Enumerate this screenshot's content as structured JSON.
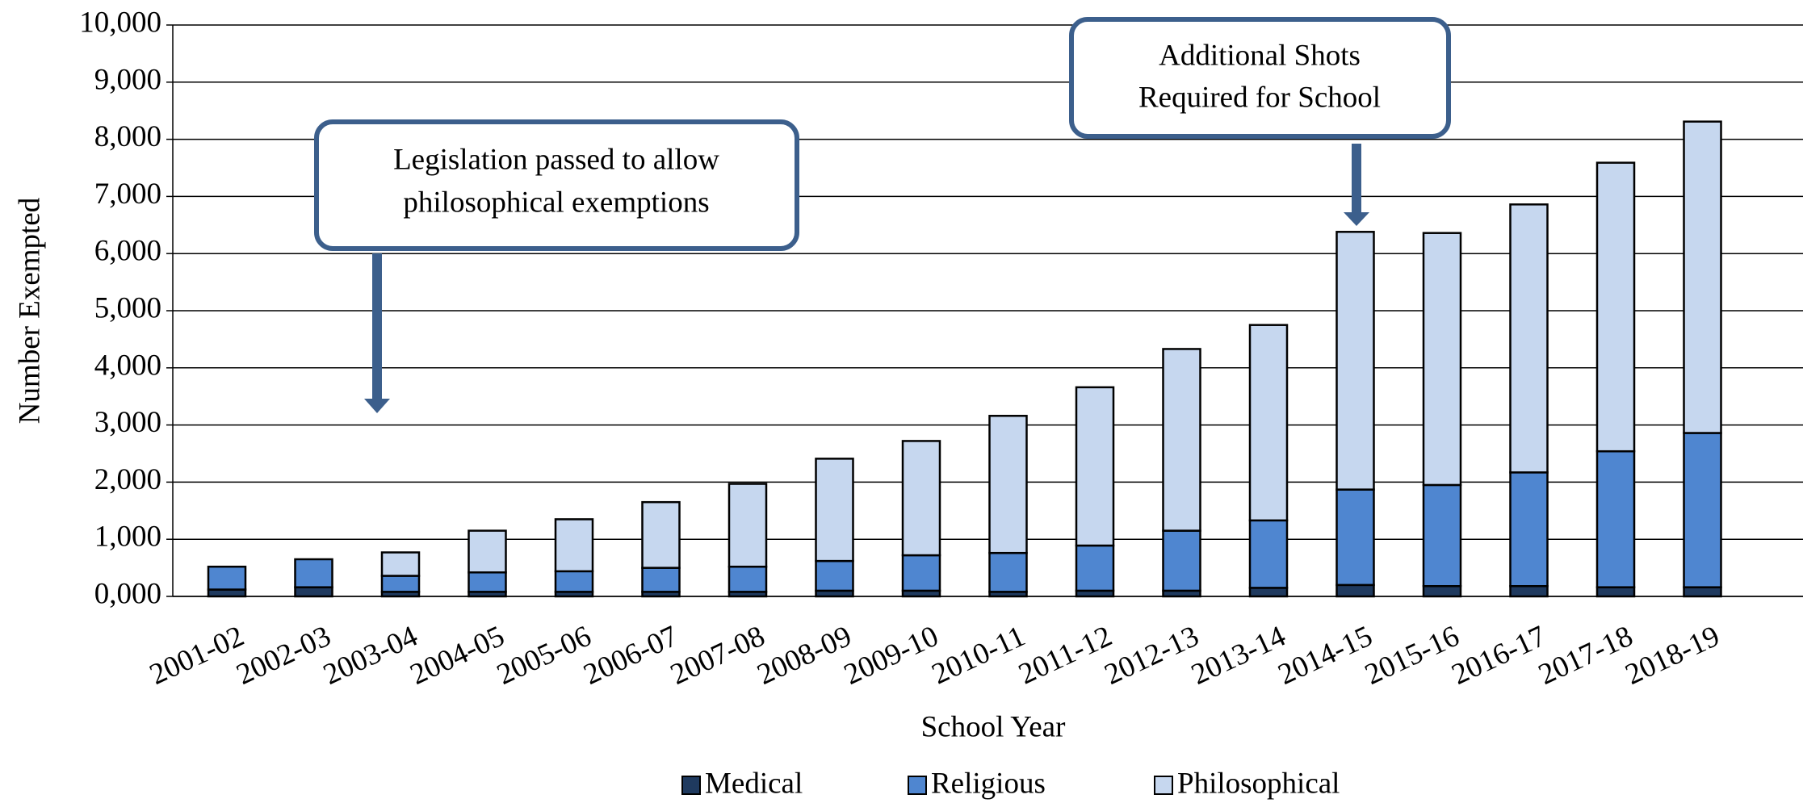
{
  "chart_data": {
    "type": "stacked_bar",
    "y_label": "Number Exempted",
    "x_label": "School Year",
    "categories": [
      "2001-02",
      "2002-03",
      "2003-04",
      "2004-05",
      "2005-06",
      "2006-07",
      "2007-08",
      "2008-09",
      "2009-10",
      "2010-11",
      "2011-12",
      "2012-13",
      "2013-14",
      "2014-15",
      "2015-16",
      "2016-17",
      "2017-18",
      "2018-19"
    ],
    "series": [
      {
        "name": "Medical",
        "color": "#1f3a5f",
        "values": [
          120,
          160,
          80,
          80,
          80,
          80,
          80,
          100,
          100,
          80,
          100,
          100,
          150,
          200,
          180,
          180,
          160,
          160
        ]
      },
      {
        "name": "Religious",
        "color": "#4f86d0",
        "values": [
          400,
          490,
          280,
          340,
          360,
          420,
          440,
          520,
          620,
          680,
          790,
          1050,
          1180,
          1670,
          1770,
          1990,
          2380,
          2700
        ]
      },
      {
        "name": "Philosophical",
        "color": "#c6d7ef",
        "values": [
          0,
          0,
          410,
          730,
          910,
          1150,
          1450,
          1790,
          2000,
          2400,
          2770,
          3180,
          3420,
          4510,
          4410,
          4690,
          5050,
          5450
        ]
      }
    ],
    "ylim": [
      0,
      10000
    ],
    "yticks": [
      {
        "value": 0,
        "label": "0,000"
      },
      {
        "value": 1000,
        "label": "1,000"
      },
      {
        "value": 2000,
        "label": "2,000"
      },
      {
        "value": 3000,
        "label": "3,000"
      },
      {
        "value": 4000,
        "label": "4,000"
      },
      {
        "value": 5000,
        "label": "5,000"
      },
      {
        "value": 6000,
        "label": "6,000"
      },
      {
        "value": 7000,
        "label": "7,000"
      },
      {
        "value": 8000,
        "label": "8,000"
      },
      {
        "value": 9000,
        "label": "9,000"
      },
      {
        "value": 10000,
        "label": "10,000"
      }
    ],
    "grid": true,
    "annotations": [
      {
        "text": [
          "Legislation  passed to allow",
          "philosophical exemptions"
        ]
      },
      {
        "text": [
          "Additional Shots",
          "Required for School"
        ]
      }
    ]
  }
}
